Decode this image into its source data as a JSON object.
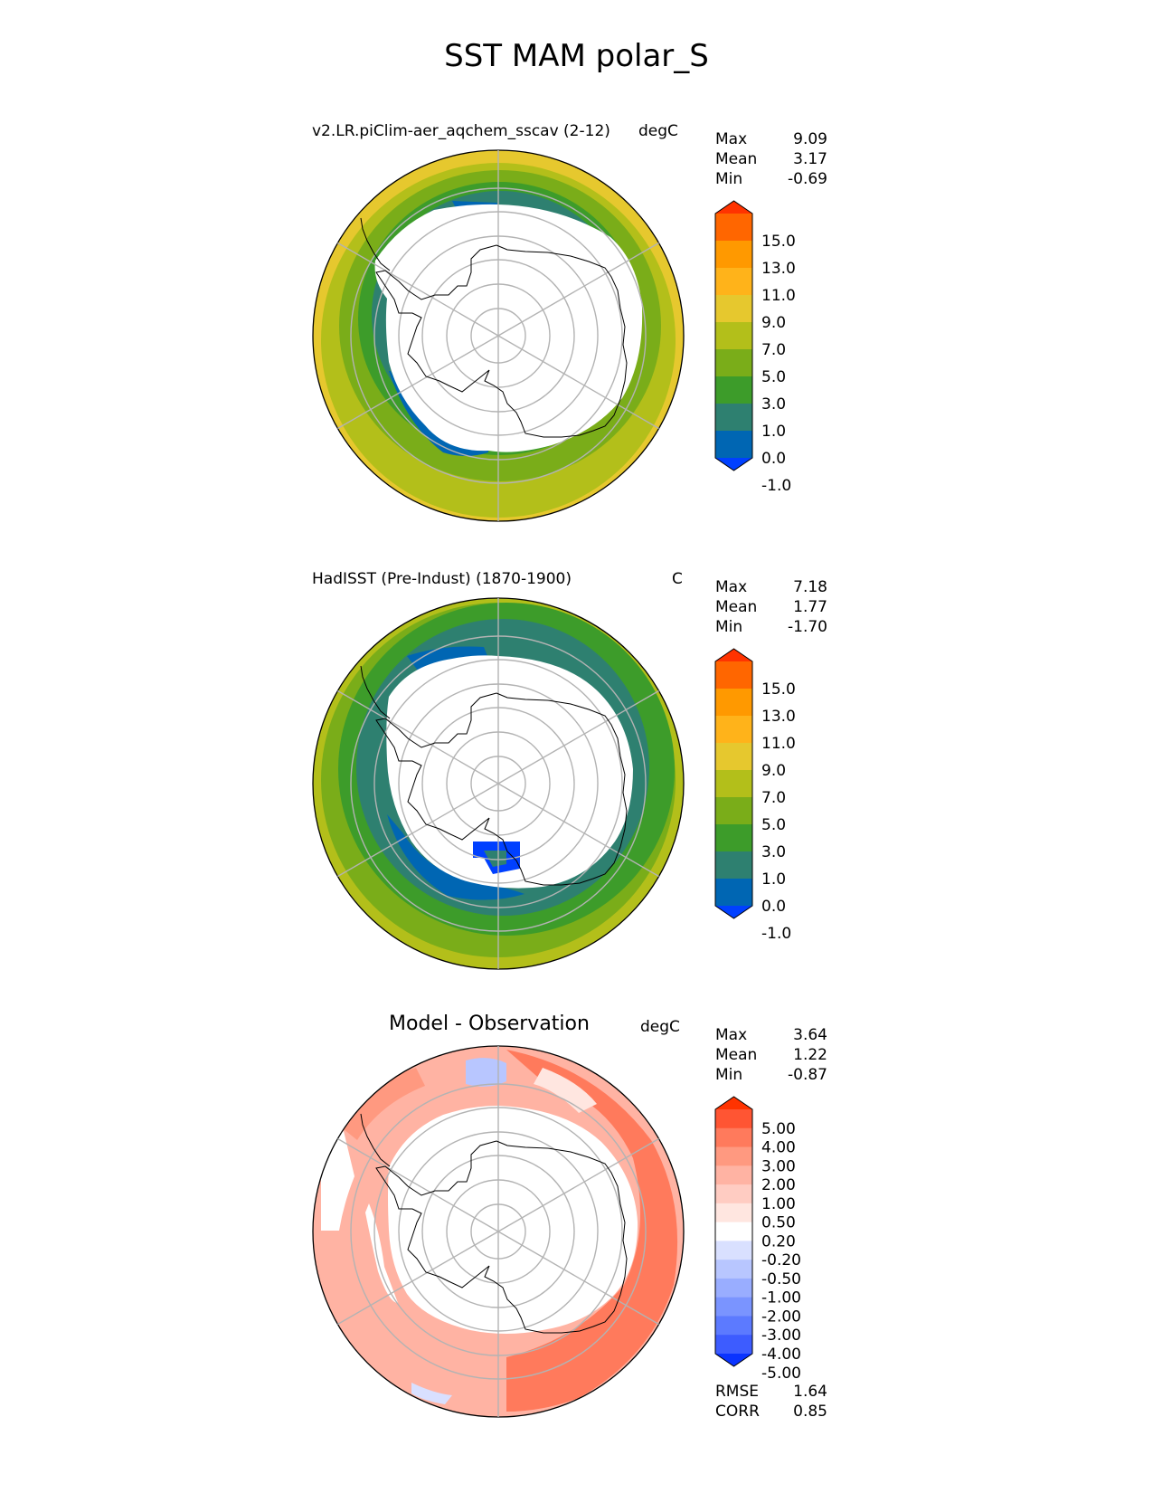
{
  "title": "SST MAM polar_S",
  "panels": [
    {
      "left_title": "v2.LR.piClim-aer_aqchem_sscav (2-12)",
      "right_title": "degC",
      "stats": [
        {
          "label": "Max",
          "value": "9.09"
        },
        {
          "label": "Mean",
          "value": "3.17"
        },
        {
          "label": "Min",
          "value": "-0.69"
        }
      ],
      "colorbar": {
        "ticks": [
          "15.0",
          "13.0",
          "11.0",
          "9.0",
          "7.0",
          "5.0",
          "3.0",
          "1.0",
          "0.0",
          "-1.0"
        ],
        "colors": [
          "#ff3300",
          "#ff6600",
          "#ff9900",
          "#ffb31a",
          "#e6c82e",
          "#b3bf1a",
          "#7aad19",
          "#3d9c2a",
          "#2e8070",
          "#0066b3",
          "#0040ff"
        ]
      }
    },
    {
      "left_title": "HadISST (Pre-Indust) (1870-1900)",
      "right_title": "C",
      "stats": [
        {
          "label": "Max",
          "value": "7.18"
        },
        {
          "label": "Mean",
          "value": "1.77"
        },
        {
          "label": "Min",
          "value": "-1.70"
        }
      ],
      "colorbar": {
        "ticks": [
          "15.0",
          "13.0",
          "11.0",
          "9.0",
          "7.0",
          "5.0",
          "3.0",
          "1.0",
          "0.0",
          "-1.0"
        ],
        "colors": [
          "#ff3300",
          "#ff6600",
          "#ff9900",
          "#ffb31a",
          "#e6c82e",
          "#b3bf1a",
          "#7aad19",
          "#3d9c2a",
          "#2e8070",
          "#0066b3",
          "#0040ff"
        ]
      }
    },
    {
      "center_title": "Model - Observation",
      "right_title": "degC",
      "stats": [
        {
          "label": "Max",
          "value": "3.64"
        },
        {
          "label": "Mean",
          "value": "1.22"
        },
        {
          "label": "Min",
          "value": "-0.87"
        }
      ],
      "colorbar": {
        "ticks": [
          "5.00",
          "4.00",
          "3.00",
          "2.00",
          "1.00",
          "0.50",
          "0.20",
          "-0.20",
          "-0.50",
          "-1.00",
          "-2.00",
          "-3.00",
          "-4.00",
          "-5.00"
        ],
        "colors": [
          "#ff3300",
          "#ff5533",
          "#ff7a5c",
          "#ff9980",
          "#ffb3a3",
          "#ffccc2",
          "#ffe6e0",
          "#ffffff",
          "#d9e0ff",
          "#b8c6ff",
          "#99adff",
          "#7a94ff",
          "#5c7aff",
          "#3d5cff",
          "#0a33ff"
        ]
      },
      "footer_stats": [
        {
          "label": "RMSE",
          "value": "1.64"
        },
        {
          "label": "CORR",
          "value": "0.85"
        }
      ]
    }
  ],
  "chart_data": [
    {
      "type": "heatmap",
      "projection": "south polar stereographic",
      "variable": "SST",
      "season": "MAM",
      "title": "v2.LR.piClim-aer_aqchem_sscav (2-12)",
      "units": "degC",
      "levels": [
        -1.0,
        0.0,
        1.0,
        3.0,
        5.0,
        7.0,
        9.0,
        11.0,
        13.0,
        15.0
      ],
      "stats": {
        "max": 9.09,
        "mean": 3.17,
        "min": -0.69
      }
    },
    {
      "type": "heatmap",
      "projection": "south polar stereographic",
      "variable": "SST",
      "season": "MAM",
      "title": "HadISST (Pre-Indust) (1870-1900)",
      "units": "C",
      "levels": [
        -1.0,
        0.0,
        1.0,
        3.0,
        5.0,
        7.0,
        9.0,
        11.0,
        13.0,
        15.0
      ],
      "stats": {
        "max": 7.18,
        "mean": 1.77,
        "min": -1.7
      }
    },
    {
      "type": "heatmap",
      "projection": "south polar stereographic",
      "variable": "SST difference",
      "season": "MAM",
      "title": "Model - Observation",
      "units": "degC",
      "levels": [
        -5.0,
        -4.0,
        -3.0,
        -2.0,
        -1.0,
        -0.5,
        -0.2,
        0.2,
        0.5,
        1.0,
        2.0,
        3.0,
        4.0,
        5.0
      ],
      "stats": {
        "max": 3.64,
        "mean": 1.22,
        "min": -0.87,
        "rmse": 1.64,
        "corr": 0.85
      }
    }
  ]
}
